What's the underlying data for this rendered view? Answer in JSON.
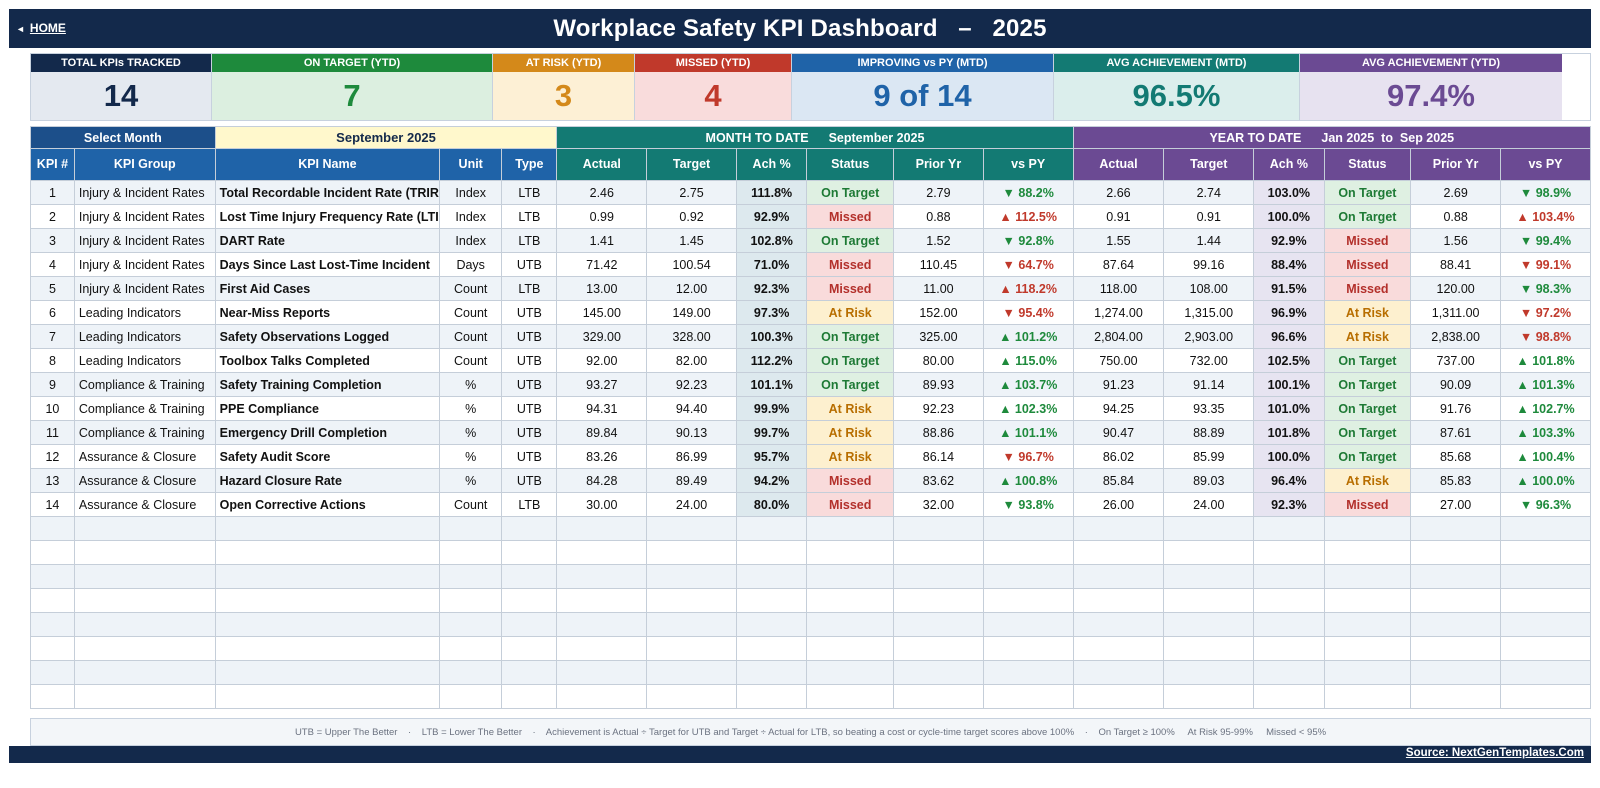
{
  "header": {
    "home_label": "HOME",
    "title": "Workplace Safety KPI Dashboard   –   2025"
  },
  "summary_cards": [
    {
      "label": "TOTAL KPIs TRACKED",
      "value": "14",
      "header_color": "#13294b",
      "bg_color": "#e4e9f0",
      "value_color": "#13294b"
    },
    {
      "label": "ON TARGET (YTD)",
      "value": "7",
      "header_color": "#1e8a3c",
      "bg_color": "#dcefe0",
      "value_color": "#1e8a3c"
    },
    {
      "label": "AT RISK (YTD)",
      "value": "3",
      "header_color": "#d4891a",
      "bg_color": "#fdf0d5",
      "value_color": "#d4891a"
    },
    {
      "label": "MISSED (YTD)",
      "value": "4",
      "header_color": "#c0392b",
      "bg_color": "#f9dcdc",
      "value_color": "#c0392b"
    },
    {
      "label": "IMPROVING vs PY (MTD)",
      "value": "9 of 14",
      "header_color": "#1f63a8",
      "bg_color": "#dbe7f3",
      "value_color": "#1f63a8"
    },
    {
      "label": "AVG ACHIEVEMENT (MTD)",
      "value": "96.5%",
      "header_color": "#137a73",
      "bg_color": "#dbeeec",
      "value_color": "#137a73"
    },
    {
      "label": "AVG ACHIEVEMENT (YTD)",
      "value": "97.4%",
      "header_color": "#6b4a93",
      "bg_color": "#e7e2f0",
      "value_color": "#6b4a93"
    }
  ],
  "selector": {
    "label": "Select Month",
    "value": "September 2025"
  },
  "bands": {
    "mtd_label": "MONTH TO DATE",
    "mtd_period": "September 2025",
    "ytd_label": "YEAR TO DATE",
    "ytd_period": "Jan 2025  to  Sep 2025"
  },
  "columns": {
    "num": "KPI #",
    "group": "KPI Group",
    "name": "KPI Name",
    "unit": "Unit",
    "type": "Type",
    "mtd": [
      "Actual",
      "Target",
      "Ach %",
      "Status",
      "Prior Yr",
      "vs PY"
    ],
    "ytd": [
      "Actual",
      "Target",
      "Ach %",
      "Status",
      "Prior Yr",
      "vs PY"
    ]
  },
  "rows": [
    {
      "num": "1",
      "group": "Injury & Incident Rates",
      "name": "Total Recordable Incident Rate (TRIR)",
      "unit": "Index",
      "type": "LTB",
      "mtd": {
        "actual": "2.46",
        "target": "2.75",
        "ach": "111.8%",
        "status": "On Target",
        "prior": "2.79",
        "vs": "▼ 88.2%",
        "vs_good": true
      },
      "ytd": {
        "actual": "2.66",
        "target": "2.74",
        "ach": "103.0%",
        "status": "On Target",
        "prior": "2.69",
        "vs": "▼ 98.9%",
        "vs_good": true
      }
    },
    {
      "num": "2",
      "group": "Injury & Incident Rates",
      "name": "Lost Time Injury Frequency Rate (LTIFR)",
      "unit": "Index",
      "type": "LTB",
      "mtd": {
        "actual": "0.99",
        "target": "0.92",
        "ach": "92.9%",
        "status": "Missed",
        "prior": "0.88",
        "vs": "▲ 112.5%",
        "vs_good": false
      },
      "ytd": {
        "actual": "0.91",
        "target": "0.91",
        "ach": "100.0%",
        "status": "On Target",
        "prior": "0.88",
        "vs": "▲ 103.4%",
        "vs_good": false
      }
    },
    {
      "num": "3",
      "group": "Injury & Incident Rates",
      "name": "DART Rate",
      "unit": "Index",
      "type": "LTB",
      "mtd": {
        "actual": "1.41",
        "target": "1.45",
        "ach": "102.8%",
        "status": "On Target",
        "prior": "1.52",
        "vs": "▼ 92.8%",
        "vs_good": true
      },
      "ytd": {
        "actual": "1.55",
        "target": "1.44",
        "ach": "92.9%",
        "status": "Missed",
        "prior": "1.56",
        "vs": "▼ 99.4%",
        "vs_good": true
      }
    },
    {
      "num": "4",
      "group": "Injury & Incident Rates",
      "name": "Days Since Last Lost-Time Incident",
      "unit": "Days",
      "type": "UTB",
      "mtd": {
        "actual": "71.42",
        "target": "100.54",
        "ach": "71.0%",
        "status": "Missed",
        "prior": "110.45",
        "vs": "▼ 64.7%",
        "vs_good": false
      },
      "ytd": {
        "actual": "87.64",
        "target": "99.16",
        "ach": "88.4%",
        "status": "Missed",
        "prior": "88.41",
        "vs": "▼ 99.1%",
        "vs_good": false
      }
    },
    {
      "num": "5",
      "group": "Injury & Incident Rates",
      "name": "First Aid Cases",
      "unit": "Count",
      "type": "LTB",
      "mtd": {
        "actual": "13.00",
        "target": "12.00",
        "ach": "92.3%",
        "status": "Missed",
        "prior": "11.00",
        "vs": "▲ 118.2%",
        "vs_good": false
      },
      "ytd": {
        "actual": "118.00",
        "target": "108.00",
        "ach": "91.5%",
        "status": "Missed",
        "prior": "120.00",
        "vs": "▼ 98.3%",
        "vs_good": true
      }
    },
    {
      "num": "6",
      "group": "Leading Indicators",
      "name": "Near-Miss Reports",
      "unit": "Count",
      "type": "UTB",
      "mtd": {
        "actual": "145.00",
        "target": "149.00",
        "ach": "97.3%",
        "status": "At Risk",
        "prior": "152.00",
        "vs": "▼ 95.4%",
        "vs_good": false
      },
      "ytd": {
        "actual": "1,274.00",
        "target": "1,315.00",
        "ach": "96.9%",
        "status": "At Risk",
        "prior": "1,311.00",
        "vs": "▼ 97.2%",
        "vs_good": false
      }
    },
    {
      "num": "7",
      "group": "Leading Indicators",
      "name": "Safety Observations Logged",
      "unit": "Count",
      "type": "UTB",
      "mtd": {
        "actual": "329.00",
        "target": "328.00",
        "ach": "100.3%",
        "status": "On Target",
        "prior": "325.00",
        "vs": "▲ 101.2%",
        "vs_good": true
      },
      "ytd": {
        "actual": "2,804.00",
        "target": "2,903.00",
        "ach": "96.6%",
        "status": "At Risk",
        "prior": "2,838.00",
        "vs": "▼ 98.8%",
        "vs_good": false
      }
    },
    {
      "num": "8",
      "group": "Leading Indicators",
      "name": "Toolbox Talks Completed",
      "unit": "Count",
      "type": "UTB",
      "mtd": {
        "actual": "92.00",
        "target": "82.00",
        "ach": "112.2%",
        "status": "On Target",
        "prior": "80.00",
        "vs": "▲ 115.0%",
        "vs_good": true
      },
      "ytd": {
        "actual": "750.00",
        "target": "732.00",
        "ach": "102.5%",
        "status": "On Target",
        "prior": "737.00",
        "vs": "▲ 101.8%",
        "vs_good": true
      }
    },
    {
      "num": "9",
      "group": "Compliance & Training",
      "name": "Safety Training Completion",
      "unit": "%",
      "type": "UTB",
      "mtd": {
        "actual": "93.27",
        "target": "92.23",
        "ach": "101.1%",
        "status": "On Target",
        "prior": "89.93",
        "vs": "▲ 103.7%",
        "vs_good": true
      },
      "ytd": {
        "actual": "91.23",
        "target": "91.14",
        "ach": "100.1%",
        "status": "On Target",
        "prior": "90.09",
        "vs": "▲ 101.3%",
        "vs_good": true
      }
    },
    {
      "num": "10",
      "group": "Compliance & Training",
      "name": "PPE Compliance",
      "unit": "%",
      "type": "UTB",
      "mtd": {
        "actual": "94.31",
        "target": "94.40",
        "ach": "99.9%",
        "status": "At Risk",
        "prior": "92.23",
        "vs": "▲ 102.3%",
        "vs_good": true
      },
      "ytd": {
        "actual": "94.25",
        "target": "93.35",
        "ach": "101.0%",
        "status": "On Target",
        "prior": "91.76",
        "vs": "▲ 102.7%",
        "vs_good": true
      }
    },
    {
      "num": "11",
      "group": "Compliance & Training",
      "name": "Emergency Drill Completion",
      "unit": "%",
      "type": "UTB",
      "mtd": {
        "actual": "89.84",
        "target": "90.13",
        "ach": "99.7%",
        "status": "At Risk",
        "prior": "88.86",
        "vs": "▲ 101.1%",
        "vs_good": true
      },
      "ytd": {
        "actual": "90.47",
        "target": "88.89",
        "ach": "101.8%",
        "status": "On Target",
        "prior": "87.61",
        "vs": "▲ 103.3%",
        "vs_good": true
      }
    },
    {
      "num": "12",
      "group": "Assurance & Closure",
      "name": "Safety Audit Score",
      "unit": "%",
      "type": "UTB",
      "mtd": {
        "actual": "83.26",
        "target": "86.99",
        "ach": "95.7%",
        "status": "At Risk",
        "prior": "86.14",
        "vs": "▼ 96.7%",
        "vs_good": false
      },
      "ytd": {
        "actual": "86.02",
        "target": "85.99",
        "ach": "100.0%",
        "status": "On Target",
        "prior": "85.68",
        "vs": "▲ 100.4%",
        "vs_good": true
      }
    },
    {
      "num": "13",
      "group": "Assurance & Closure",
      "name": "Hazard Closure Rate",
      "unit": "%",
      "type": "UTB",
      "mtd": {
        "actual": "84.28",
        "target": "89.49",
        "ach": "94.2%",
        "status": "Missed",
        "prior": "83.62",
        "vs": "▲ 100.8%",
        "vs_good": true
      },
      "ytd": {
        "actual": "85.84",
        "target": "89.03",
        "ach": "96.4%",
        "status": "At Risk",
        "prior": "85.83",
        "vs": "▲ 100.0%",
        "vs_good": true
      }
    },
    {
      "num": "14",
      "group": "Assurance & Closure",
      "name": "Open Corrective Actions",
      "unit": "Count",
      "type": "LTB",
      "mtd": {
        "actual": "30.00",
        "target": "24.00",
        "ach": "80.0%",
        "status": "Missed",
        "prior": "32.00",
        "vs": "▼ 93.8%",
        "vs_good": true
      },
      "ytd": {
        "actual": "26.00",
        "target": "24.00",
        "ach": "92.3%",
        "status": "Missed",
        "prior": "27.00",
        "vs": "▼ 96.3%",
        "vs_good": true
      }
    }
  ],
  "blank_rows": 8,
  "footer_note": "UTB = Upper The Better    ·    LTB = Lower The Better    ·    Achievement is Actual ÷ Target for UTB and Target ÷ Actual for LTB, so beating a cost or cycle-time target scores above 100%    ·    On Target ≥ 100%     At Risk 95-99%     Missed < 95%",
  "source_label": "Source: NextGenTemplates.Com"
}
